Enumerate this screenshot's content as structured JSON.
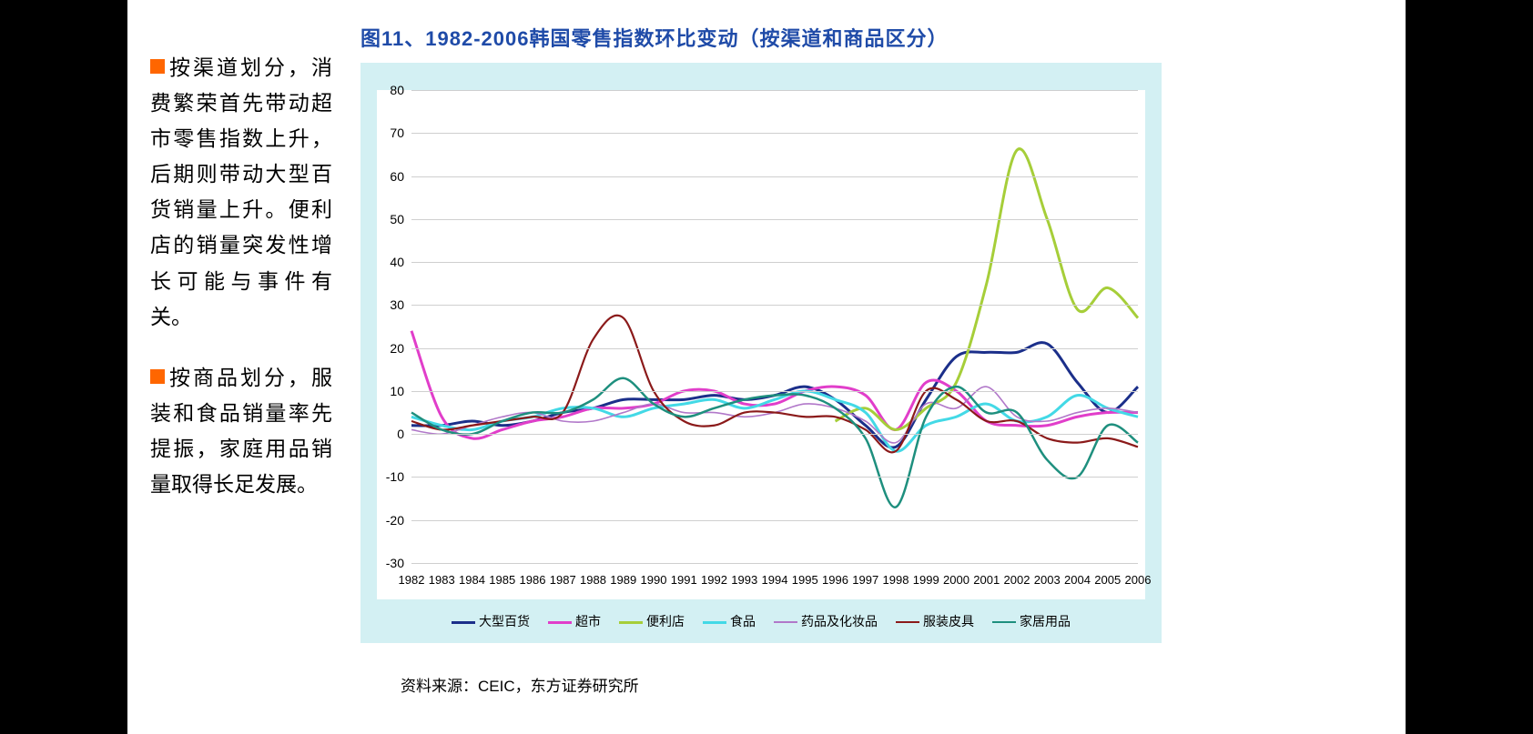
{
  "sidebar": {
    "para1": "按渠道划分，消费繁荣首先带动超市零售指数上升，后期则带动大型百货销量上升。便利店的销量突发性增长可能与事件有关。",
    "para2": "按商品划分，服装和食品销量率先提振，家庭用品销量取得长足发展。"
  },
  "chart": {
    "title": "图11、1982-2006韩国零售指数环比变动（按渠道和商品区分）",
    "background": "#d3f0f3",
    "plot_bg": "#ffffff",
    "grid_color": "#cfcfcf",
    "title_color": "#1f4ba8",
    "ylim": [
      -30,
      80
    ],
    "yticks": [
      -30,
      -20,
      -10,
      0,
      10,
      20,
      30,
      40,
      50,
      60,
      70,
      80
    ],
    "xlim": [
      1982,
      2006
    ],
    "xticks": [
      1982,
      1983,
      1984,
      1985,
      1986,
      1987,
      1988,
      1989,
      1990,
      1991,
      1992,
      1993,
      1994,
      1995,
      1996,
      1997,
      1998,
      1999,
      2000,
      2001,
      2002,
      2003,
      2004,
      2005,
      2006
    ],
    "series": [
      {
        "name": "大型百货",
        "color": "#1b2f8a",
        "width": 3,
        "x": [
          1982,
          1983,
          1984,
          1985,
          1986,
          1987,
          1988,
          1989,
          1990,
          1991,
          1992,
          1993,
          1994,
          1995,
          1996,
          1997,
          1998,
          1999,
          2000,
          2001,
          2002,
          2003,
          2004,
          2005,
          2006
        ],
        "y": [
          2,
          2,
          3,
          2,
          3,
          5,
          6,
          8,
          8,
          8,
          9,
          8,
          9,
          11,
          8,
          2,
          -3,
          8,
          18,
          19,
          19,
          21,
          12,
          5,
          11
        ]
      },
      {
        "name": "超市",
        "color": "#e13eca",
        "width": 3,
        "x": [
          1982,
          1983,
          1984,
          1985,
          1986,
          1987,
          1988,
          1989,
          1990,
          1991,
          1992,
          1993,
          1994,
          1995,
          1996,
          1997,
          1998,
          1999,
          2000,
          2001,
          2002,
          2003,
          2004,
          2005,
          2006
        ],
        "y": [
          24,
          4,
          -1,
          1,
          3,
          4,
          6,
          6,
          7,
          10,
          10,
          7,
          7,
          10,
          11,
          9,
          1,
          12,
          10,
          3,
          2,
          2,
          4,
          5,
          5
        ]
      },
      {
        "name": "便利店",
        "color": "#a6ce39",
        "width": 3,
        "x": [
          1996,
          1997,
          1998,
          1999,
          2000,
          2001,
          2002,
          2003,
          2004,
          2005,
          2006
        ],
        "y": [
          3,
          6,
          1,
          6,
          12,
          35,
          66,
          50,
          29,
          34,
          27
        ]
      },
      {
        "name": "食品",
        "color": "#43d9e6",
        "width": 3,
        "x": [
          1982,
          1983,
          1984,
          1985,
          1986,
          1987,
          1988,
          1989,
          1990,
          1991,
          1992,
          1993,
          1994,
          1995,
          1996,
          1997,
          1998,
          1999,
          2000,
          2001,
          2002,
          2003,
          2004,
          2005,
          2006
        ],
        "y": [
          4,
          2,
          1,
          3,
          4,
          6,
          6,
          4,
          6,
          7,
          8,
          6,
          8,
          10,
          8,
          5,
          -4,
          2,
          4,
          7,
          3,
          4,
          9,
          6,
          4
        ]
      },
      {
        "name": "药品及化妆品",
        "color": "#b178c9",
        "width": 1.6,
        "x": [
          1982,
          1983,
          1984,
          1985,
          1986,
          1987,
          1988,
          1989,
          1990,
          1991,
          1992,
          1993,
          1994,
          1995,
          1996,
          1997,
          1998,
          1999,
          2000,
          2001,
          2002,
          2003,
          2004,
          2005,
          2006
        ],
        "y": [
          1,
          0,
          2,
          4,
          5,
          3,
          3,
          5,
          7,
          5,
          5,
          4,
          5,
          7,
          6,
          3,
          -2,
          7,
          6,
          11,
          4,
          3,
          5,
          6,
          5
        ]
      },
      {
        "name": "服装皮具",
        "color": "#8b1a1a",
        "width": 2.2,
        "x": [
          1982,
          1983,
          1984,
          1985,
          1986,
          1987,
          1988,
          1989,
          1990,
          1991,
          1992,
          1993,
          1994,
          1995,
          1996,
          1997,
          1998,
          1999,
          2000,
          2001,
          2002,
          2003,
          2004,
          2005,
          2006
        ],
        "y": [
          3,
          1,
          2,
          3,
          4,
          5,
          22,
          27,
          10,
          3,
          2,
          5,
          5,
          4,
          4,
          1,
          -4,
          10,
          8,
          3,
          3,
          -1,
          -2,
          -1,
          -3
        ]
      },
      {
        "name": "家居用品",
        "color": "#1e8f7e",
        "width": 2.5,
        "x": [
          1982,
          1983,
          1984,
          1985,
          1986,
          1987,
          1988,
          1989,
          1990,
          1991,
          1992,
          1993,
          1994,
          1995,
          1996,
          1997,
          1998,
          1999,
          2000,
          2001,
          2002,
          2003,
          2004,
          2005,
          2006
        ],
        "y": [
          5,
          1,
          0,
          3,
          5,
          5,
          8,
          13,
          7,
          4,
          6,
          8,
          9,
          9,
          6,
          -1,
          -17,
          4,
          11,
          5,
          5,
          -6,
          -10,
          2,
          -2
        ]
      }
    ]
  },
  "source": "资料来源：CEIC，东方证券研究所"
}
